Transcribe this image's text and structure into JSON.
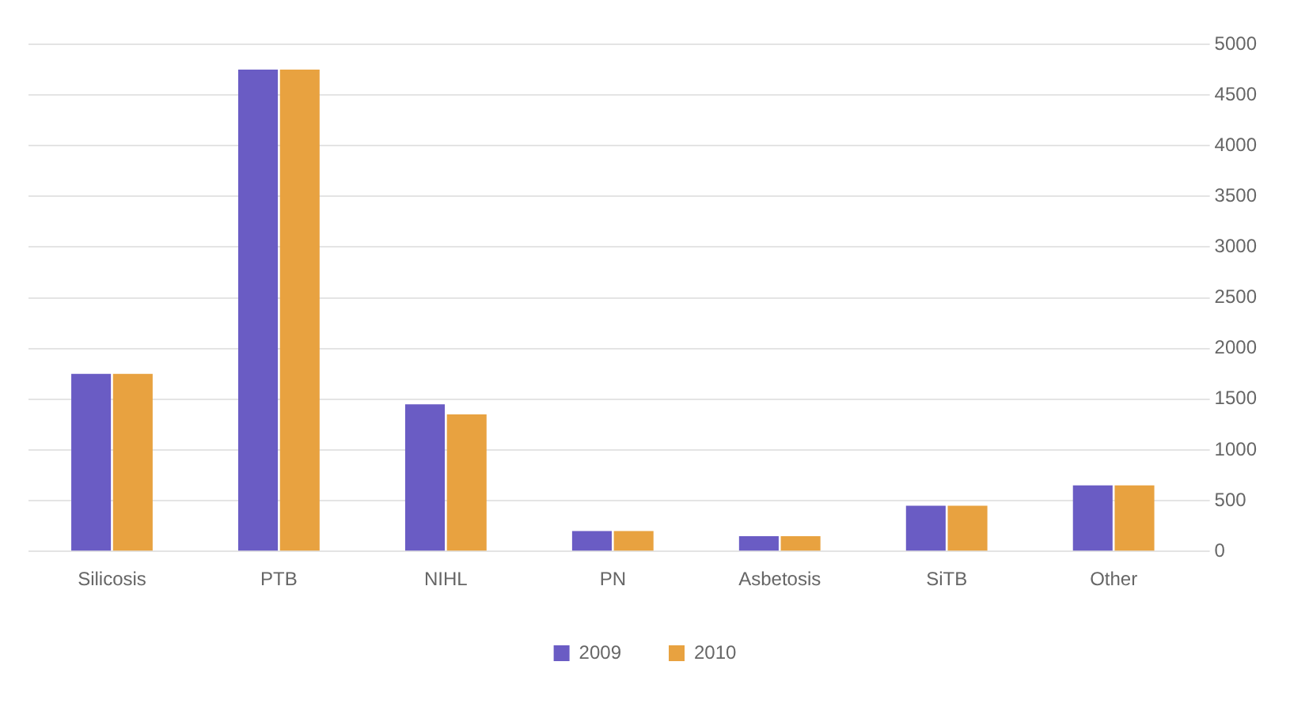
{
  "chart_data": {
    "type": "bar",
    "categories": [
      "Silicosis",
      "PTB",
      "NIHL",
      "PN",
      "Asbetosis",
      "SiTB",
      "Other"
    ],
    "series": [
      {
        "name": "2009",
        "color": "#6a5cc4",
        "values": [
          1750,
          4750,
          1450,
          200,
          150,
          450,
          650
        ]
      },
      {
        "name": "2010",
        "color": "#e8a240",
        "values": [
          1750,
          4750,
          1350,
          200,
          150,
          450,
          650
        ]
      }
    ],
    "ylim": [
      0,
      5000
    ],
    "yticks": [
      0,
      500,
      1000,
      1500,
      2000,
      2500,
      3000,
      3500,
      4000,
      4500,
      5000
    ],
    "grid": "y",
    "legend": "bottom"
  }
}
